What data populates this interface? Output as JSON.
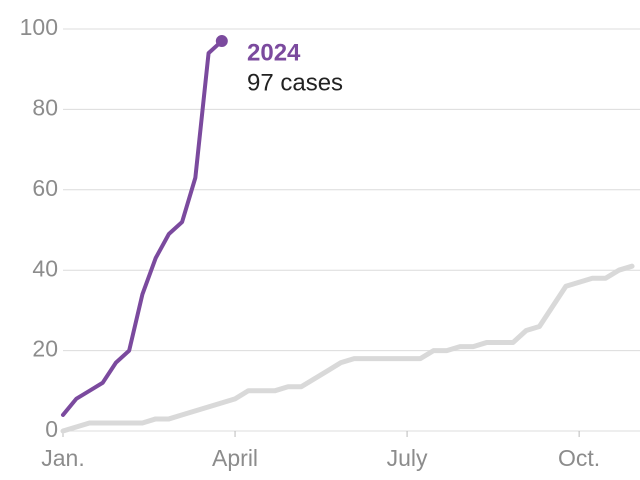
{
  "chart_data": {
    "type": "line",
    "annotation": {
      "text": "97 cases"
    },
    "series": [
      {
        "color": "#d9d9d9",
        "x": [
          0,
          1,
          2,
          3,
          4,
          5,
          6,
          7,
          8,
          9,
          10,
          11,
          12,
          13,
          14,
          15,
          16,
          17,
          18,
          19,
          20,
          21,
          22,
          23,
          24,
          25,
          26,
          27,
          28,
          29,
          30,
          31,
          32,
          33,
          34,
          35,
          36,
          37,
          38,
          39,
          40,
          41,
          42,
          43
        ],
        "values": [
          0,
          1,
          2,
          2,
          2,
          2,
          2,
          3,
          3,
          4,
          5,
          6,
          7,
          8,
          10,
          10,
          10,
          11,
          11,
          13,
          15,
          17,
          18,
          18,
          18,
          18,
          18,
          18,
          20,
          20,
          21,
          21,
          22,
          22,
          22,
          25,
          26,
          31,
          36,
          37,
          38,
          38,
          40,
          41
        ]
      },
      {
        "name": "2024",
        "color": "#7b4a9e",
        "x": [
          0,
          1,
          2,
          3,
          4,
          5,
          6,
          7,
          8,
          9,
          10,
          11,
          12
        ],
        "values": [
          4,
          8,
          10,
          12,
          17,
          20,
          34,
          43,
          49,
          52,
          63,
          94,
          97
        ]
      }
    ],
    "xlim": [
      0,
      43.6
    ],
    "xticks": [
      {
        "value": 0,
        "label": "Jan."
      },
      {
        "value": 13,
        "label": "April"
      },
      {
        "value": 26,
        "label": "July"
      },
      {
        "value": 39,
        "label": "Oct."
      }
    ],
    "ylim": [
      0,
      100
    ],
    "yticks": [
      0,
      20,
      40,
      60,
      80,
      100
    ],
    "grid": true
  }
}
